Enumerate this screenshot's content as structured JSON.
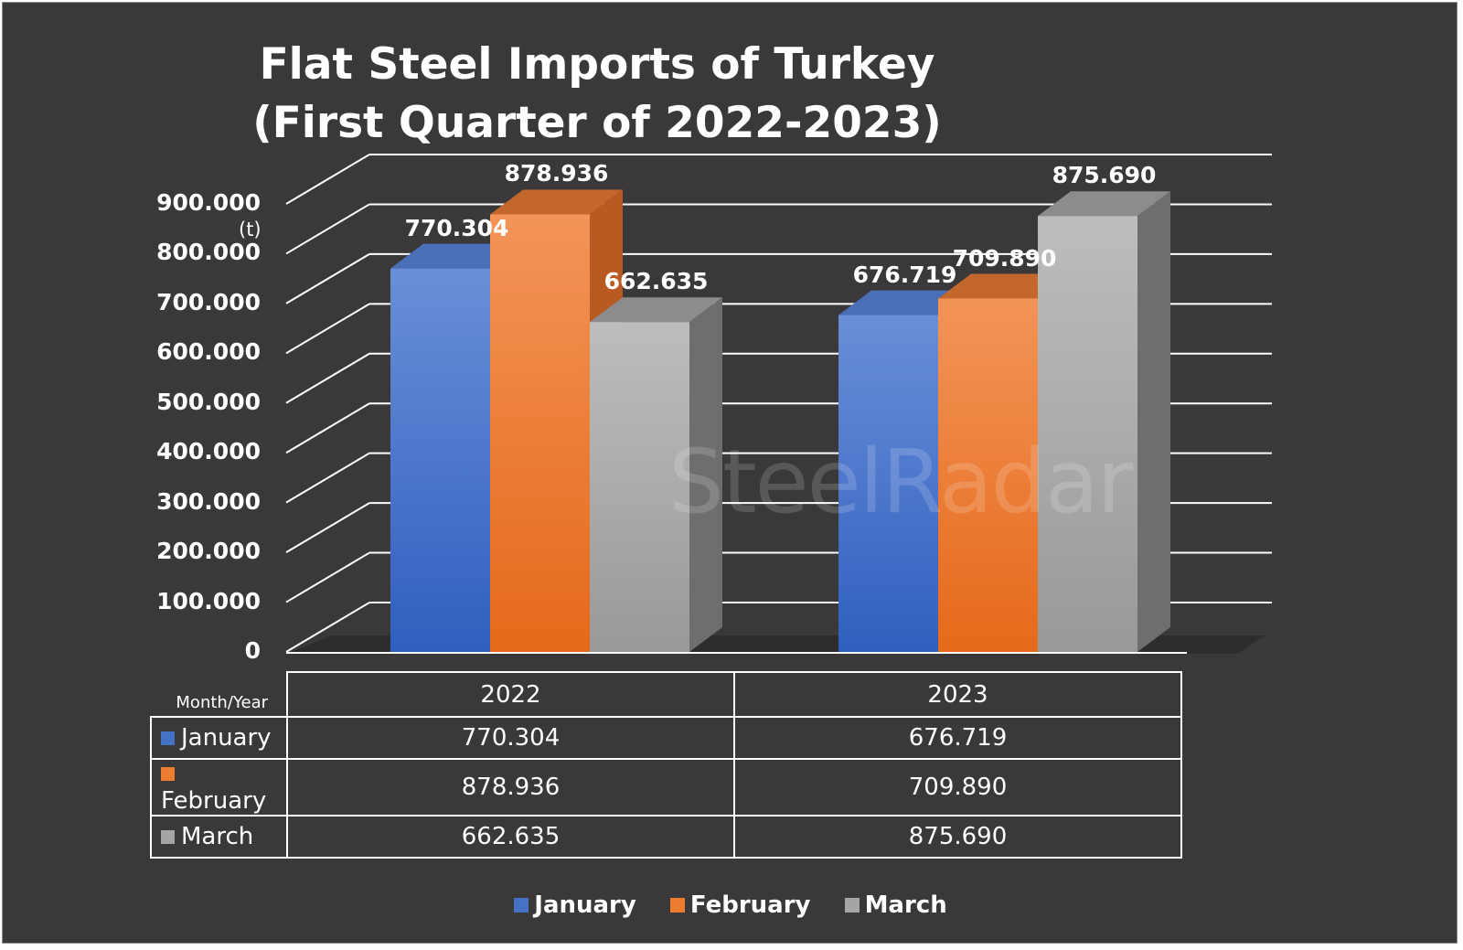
{
  "chart_data": {
    "type": "bar",
    "title_lines": [
      "Flat Steel Imports of Turkey",
      "(First Quarter of 2022-2023)"
    ],
    "ylabel": "(t)",
    "xlabel": "Month/Year",
    "ylim": [
      0,
      900000
    ],
    "yticks": [
      "0",
      "100.000",
      "200.000",
      "300.000",
      "400.000",
      "500.000",
      "600.000",
      "700.000",
      "800.000",
      "900.000"
    ],
    "categories": [
      "2022",
      "2023"
    ],
    "series": [
      {
        "name": "January",
        "values": [
          770304,
          676719
        ],
        "labels": [
          "770.304",
          "676.719"
        ],
        "color": "#4472c4"
      },
      {
        "name": "February",
        "values": [
          878936,
          709890
        ],
        "labels": [
          "878.936",
          "709.890"
        ],
        "color": "#ed7d31"
      },
      {
        "name": "March",
        "values": [
          662635,
          875690
        ],
        "labels": [
          "662.635",
          "875.690"
        ],
        "color": "#a5a5a5"
      }
    ],
    "legend_position": "bottom",
    "grid": true,
    "watermark": "SteelRadar"
  }
}
